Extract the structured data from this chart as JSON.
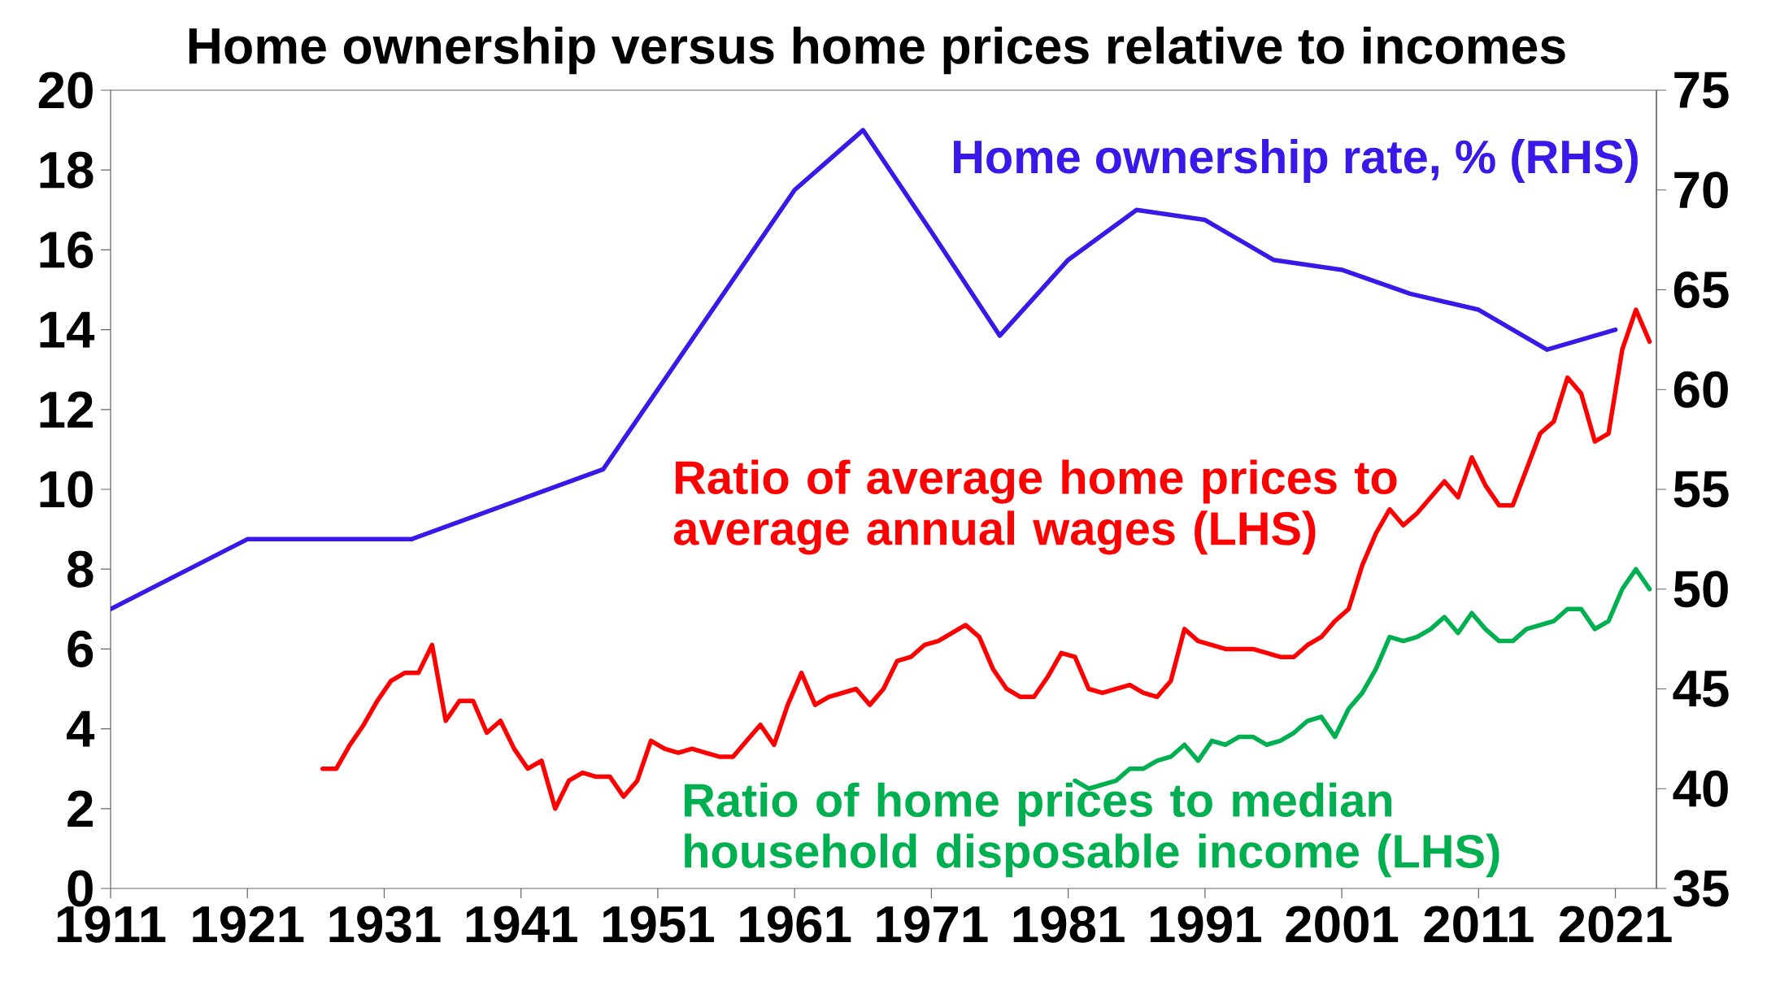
{
  "chart_data": {
    "type": "line",
    "title": "Home ownership versus home prices relative to incomes",
    "xlim": [
      1911,
      2024
    ],
    "xticks": [
      1911,
      1921,
      1931,
      1941,
      1951,
      1961,
      1971,
      1981,
      1991,
      2001,
      2011,
      2021
    ],
    "ylim": [
      0,
      20
    ],
    "yticks": [
      0,
      2,
      4,
      6,
      8,
      10,
      12,
      14,
      16,
      18,
      20
    ],
    "y2lim": [
      35,
      75
    ],
    "y2ticks": [
      35,
      40,
      45,
      50,
      55,
      60,
      65,
      70,
      75
    ],
    "marker": "none",
    "line_style": "solid",
    "series": [
      {
        "name": "Home ownership rate, % (RHS)",
        "color": "#3a18e8",
        "axis": "y2",
        "x": [
          1911,
          1921,
          1933,
          1947,
          1961,
          1966,
          1971,
          1976,
          1981,
          1986,
          1991,
          1996,
          2001,
          2006,
          2011,
          2016,
          2021
        ],
        "values": [
          49,
          52.5,
          52.5,
          56,
          70,
          73,
          67.9,
          62.7,
          66.5,
          69,
          68.5,
          66.5,
          66,
          64.8,
          64,
          62,
          63
        ]
      },
      {
        "name": "Ratio of average home prices to average annual wages (LHS)",
        "color": "#ff0000",
        "x": [
          1926.5,
          1927.5,
          1928.5,
          1929.5,
          1930.5,
          1931.5,
          1932.5,
          1933.5,
          1934.5,
          1935.5,
          1936.5,
          1937.5,
          1938.5,
          1939.5,
          1940.5,
          1941.5,
          1942.5,
          1943.5,
          1944.5,
          1945.5,
          1946.5,
          1947.5,
          1948.5,
          1949.5,
          1950.5,
          1951.5,
          1952.5,
          1953.5,
          1954.5,
          1955.5,
          1956.5,
          1957.5,
          1958.5,
          1959.5,
          1960.5,
          1961.5,
          1962.5,
          1963.5,
          1964.5,
          1965.5,
          1966.5,
          1967.5,
          1968.5,
          1969.5,
          1970.5,
          1971.5,
          1972.5,
          1973.5,
          1974.5,
          1975.5,
          1976.5,
          1977.5,
          1978.5,
          1979.5,
          1980.5,
          1981.5,
          1982.5,
          1983.5,
          1984.5,
          1985.5,
          1986.5,
          1987.5,
          1988.5,
          1989.5,
          1990.5,
          1991.5,
          1992.5,
          1993.5,
          1994.5,
          1995.5,
          1996.5,
          1997.5,
          1998.5,
          1999.5,
          2000.5,
          2001.5,
          2002.5,
          2003.5,
          2004.5,
          2005.5,
          2006.5,
          2007.5,
          2008.5,
          2009.5,
          2010.5,
          2011.5,
          2012.5,
          2013.5,
          2014.5,
          2015.5,
          2016.5,
          2017.5,
          2018.5,
          2019.5,
          2020.5,
          2021.5,
          2022.5,
          2023.5
        ],
        "values": [
          3.0,
          3.0,
          3.6,
          4.1,
          4.7,
          5.2,
          5.4,
          5.4,
          6.1,
          4.2,
          4.7,
          4.7,
          3.9,
          4.2,
          3.5,
          3.0,
          3.2,
          2.0,
          2.7,
          2.9,
          2.8,
          2.8,
          2.3,
          2.7,
          3.7,
          3.5,
          3.4,
          3.5,
          3.4,
          3.3,
          3.3,
          3.7,
          4.1,
          3.6,
          4.6,
          5.4,
          4.6,
          4.8,
          4.9,
          5.0,
          4.6,
          5.0,
          5.7,
          5.8,
          6.1,
          6.2,
          6.4,
          6.6,
          6.3,
          5.5,
          5.0,
          4.8,
          4.8,
          5.3,
          5.9,
          5.8,
          5.0,
          4.9,
          5.0,
          5.1,
          4.9,
          4.8,
          5.2,
          6.5,
          6.2,
          6.1,
          6.0,
          6.0,
          6.0,
          5.9,
          5.8,
          5.8,
          6.1,
          6.3,
          6.7,
          7.0,
          8.1,
          8.9,
          9.5,
          9.1,
          9.4,
          9.8,
          10.2,
          9.8,
          10.8,
          10.1,
          9.6,
          9.6,
          10.5,
          11.4,
          11.7,
          12.8,
          12.4,
          11.2,
          11.4,
          13.5,
          14.5,
          13.7
        ]
      },
      {
        "name": "Ratio of home prices to median household disposable income (LHS)",
        "color": "#00b050",
        "x": [
          1981.5,
          1982.5,
          1983.5,
          1984.5,
          1985.5,
          1986.5,
          1987.5,
          1988.5,
          1989.5,
          1990.5,
          1991.5,
          1992.5,
          1993.5,
          1994.5,
          1995.5,
          1996.5,
          1997.5,
          1998.5,
          1999.5,
          2000.5,
          2001.5,
          2002.5,
          2003.5,
          2004.5,
          2005.5,
          2006.5,
          2007.5,
          2008.5,
          2009.5,
          2010.5,
          2011.5,
          2012.5,
          2013.5,
          2014.5,
          2015.5,
          2016.5,
          2017.5,
          2018.5,
          2019.5,
          2020.5,
          2021.5,
          2022.5,
          2023.5
        ],
        "values": [
          2.7,
          2.5,
          2.6,
          2.7,
          3.0,
          3.0,
          3.2,
          3.3,
          3.6,
          3.2,
          3.7,
          3.6,
          3.8,
          3.8,
          3.6,
          3.7,
          3.9,
          4.2,
          4.3,
          3.8,
          4.5,
          4.9,
          5.5,
          6.3,
          6.2,
          6.3,
          6.5,
          6.8,
          6.4,
          6.9,
          6.5,
          6.2,
          6.2,
          6.5,
          6.6,
          6.7,
          7.0,
          7.0,
          6.5,
          6.7,
          7.5,
          8.0,
          7.5
        ]
      }
    ]
  }
}
